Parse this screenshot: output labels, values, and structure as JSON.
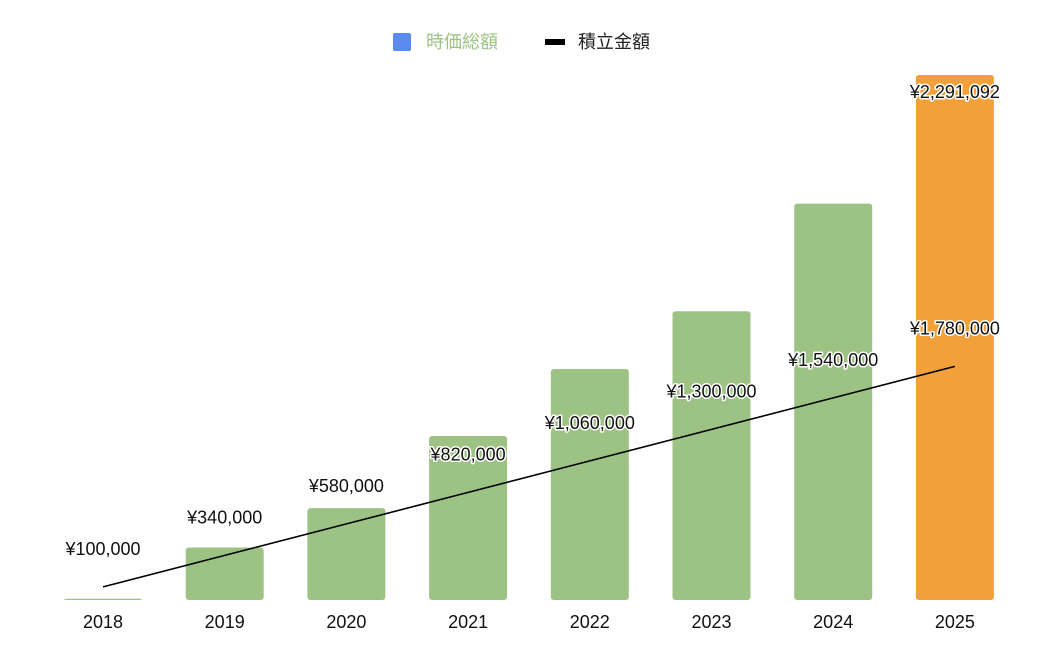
{
  "chart_data": {
    "type": "bar",
    "categories": [
      "2018",
      "2019",
      "2020",
      "2021",
      "2022",
      "2023",
      "2024",
      "2025"
    ],
    "series": [
      {
        "name": "時価総額",
        "type": "bar",
        "values": [
          10000,
          400000,
          700000,
          1250000,
          1760000,
          2200000,
          3020000,
          4000000
        ],
        "color": "#9dc384",
        "highlight": {
          "category": "2025",
          "color": "#f2a039",
          "label": "¥2,291,092"
        }
      },
      {
        "name": "積立金額",
        "type": "line",
        "values": [
          100000,
          340000,
          580000,
          820000,
          1060000,
          1300000,
          1540000,
          1780000
        ],
        "labels": [
          "¥100,000",
          "¥340,000",
          "¥580,000",
          "¥820,000",
          "¥1,060,000",
          "¥1,300,000",
          "¥1,540,000",
          "¥1,780,000"
        ],
        "color": "#000000"
      }
    ],
    "ylim": [
      0,
      4000000
    ],
    "grid": false,
    "legend": {
      "position": "top",
      "items": [
        {
          "label": "時価総額",
          "swatch_color": "#5a8cf0",
          "text_color": "#9dc384"
        },
        {
          "label": "積立金額",
          "swatch_color": "#000000",
          "text_color": "#222222"
        }
      ]
    },
    "title": "",
    "xlabel": "",
    "ylabel": ""
  }
}
